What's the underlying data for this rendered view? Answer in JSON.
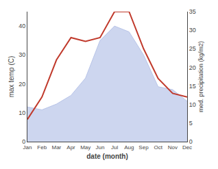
{
  "chart_data": {
    "type": "line",
    "xlabel": "date (month)",
    "ylabel": "max temp (C)",
    "y2label": "med. precipitation (kg/m2)",
    "categories": [
      "Jan",
      "Feb",
      "Mar",
      "Apr",
      "May",
      "Jun",
      "Jul",
      "Aug",
      "Sep",
      "Oct",
      "Nov",
      "Dec"
    ],
    "series": [
      {
        "type": "area",
        "color": "#b8c4e8",
        "values": [
          12,
          11,
          13,
          16,
          22,
          35,
          40,
          38,
          30,
          19,
          18,
          14
        ]
      },
      {
        "type": "line",
        "color": "#c0392b",
        "axis": "y2",
        "values": [
          6,
          12,
          22,
          28,
          27,
          28,
          35,
          35,
          25,
          17,
          13,
          12
        ]
      }
    ],
    "ylim": [
      0,
      45
    ],
    "yticks": [
      0,
      10,
      20,
      30,
      40
    ],
    "y2lim": [
      0,
      35
    ],
    "y2ticks": [
      0,
      5,
      10,
      15,
      20,
      25,
      30,
      35
    ],
    "grid": false
  }
}
